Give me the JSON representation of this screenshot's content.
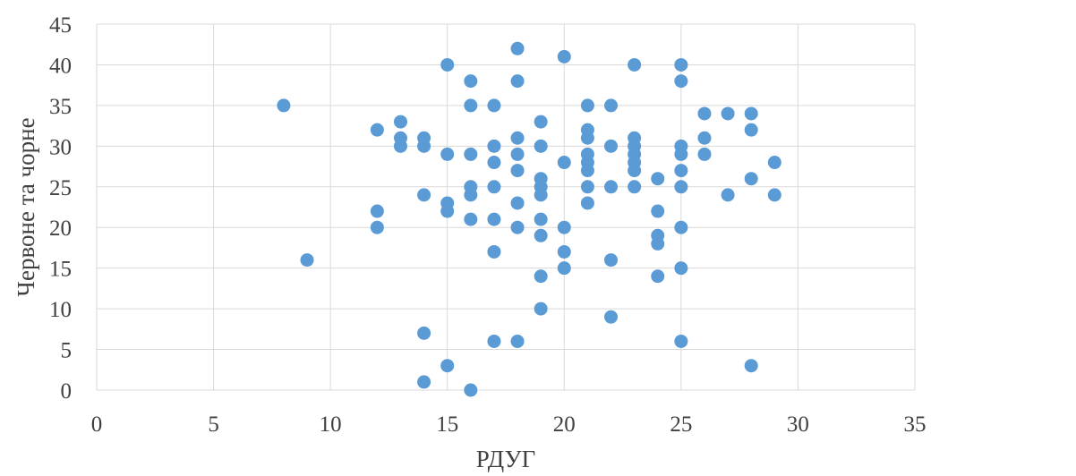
{
  "chart_data": {
    "type": "scatter",
    "title": "",
    "xlabel": "РДУГ",
    "ylabel": "Червоне та чорне",
    "xlim": [
      0,
      35
    ],
    "ylim": [
      0,
      45
    ],
    "x_ticks": [
      0,
      5,
      10,
      15,
      20,
      25,
      30,
      35
    ],
    "y_ticks": [
      0,
      5,
      10,
      15,
      20,
      25,
      30,
      35,
      40,
      45
    ],
    "grid": true,
    "legend": "none",
    "marker_color": "#5b9bd5",
    "points": [
      [
        8,
        35
      ],
      [
        9,
        16
      ],
      [
        12,
        32
      ],
      [
        12,
        22
      ],
      [
        12,
        20
      ],
      [
        13,
        33
      ],
      [
        13,
        31
      ],
      [
        13,
        30
      ],
      [
        14,
        31
      ],
      [
        14,
        30
      ],
      [
        14,
        24
      ],
      [
        14,
        7
      ],
      [
        14,
        1
      ],
      [
        15,
        40
      ],
      [
        15,
        29
      ],
      [
        15,
        23
      ],
      [
        15,
        22
      ],
      [
        15,
        3
      ],
      [
        16,
        38
      ],
      [
        16,
        35
      ],
      [
        16,
        29
      ],
      [
        16,
        25
      ],
      [
        16,
        24
      ],
      [
        16,
        21
      ],
      [
        16,
        0
      ],
      [
        17,
        35
      ],
      [
        17,
        30
      ],
      [
        17,
        28
      ],
      [
        17,
        25
      ],
      [
        17,
        21
      ],
      [
        17,
        17
      ],
      [
        17,
        6
      ],
      [
        18,
        42
      ],
      [
        18,
        38
      ],
      [
        18,
        31
      ],
      [
        18,
        29
      ],
      [
        18,
        27
      ],
      [
        18,
        23
      ],
      [
        18,
        20
      ],
      [
        18,
        6
      ],
      [
        19,
        33
      ],
      [
        19,
        30
      ],
      [
        19,
        26
      ],
      [
        19,
        25
      ],
      [
        19,
        24
      ],
      [
        19,
        21
      ],
      [
        19,
        19
      ],
      [
        19,
        14
      ],
      [
        19,
        10
      ],
      [
        20,
        41
      ],
      [
        20,
        28
      ],
      [
        20,
        20
      ],
      [
        20,
        17
      ],
      [
        20,
        15
      ],
      [
        21,
        35
      ],
      [
        21,
        32
      ],
      [
        21,
        31
      ],
      [
        21,
        29
      ],
      [
        21,
        28
      ],
      [
        21,
        27
      ],
      [
        21,
        25
      ],
      [
        21,
        23
      ],
      [
        22,
        35
      ],
      [
        22,
        30
      ],
      [
        22,
        25
      ],
      [
        22,
        16
      ],
      [
        22,
        9
      ],
      [
        23,
        40
      ],
      [
        23,
        31
      ],
      [
        23,
        30
      ],
      [
        23,
        29
      ],
      [
        23,
        28
      ],
      [
        23,
        27
      ],
      [
        23,
        25
      ],
      [
        24,
        26
      ],
      [
        24,
        22
      ],
      [
        24,
        19
      ],
      [
        24,
        18
      ],
      [
        24,
        14
      ],
      [
        25,
        40
      ],
      [
        25,
        38
      ],
      [
        25,
        30
      ],
      [
        25,
        29
      ],
      [
        25,
        27
      ],
      [
        25,
        25
      ],
      [
        25,
        20
      ],
      [
        25,
        15
      ],
      [
        25,
        6
      ],
      [
        26,
        34
      ],
      [
        26,
        31
      ],
      [
        26,
        29
      ],
      [
        27,
        34
      ],
      [
        27,
        24
      ],
      [
        28,
        34
      ],
      [
        28,
        32
      ],
      [
        28,
        26
      ],
      [
        28,
        3
      ],
      [
        29,
        28
      ],
      [
        29,
        24
      ]
    ]
  }
}
